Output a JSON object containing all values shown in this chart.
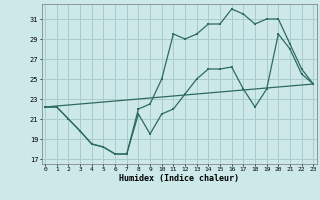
{
  "xlabel": "Humidex (Indice chaleur)",
  "bg_color": "#cce8e8",
  "grid_color": "#aacccc",
  "line_color": "#2d6b5e",
  "line1_x": [
    0,
    1,
    2,
    3,
    4,
    5,
    6,
    7,
    8,
    9,
    10,
    11,
    12,
    13,
    14,
    15,
    16,
    17,
    18,
    19,
    20,
    21,
    22,
    23
  ],
  "line1_y": [
    22.2,
    22.2,
    21.0,
    19.8,
    18.5,
    18.2,
    17.5,
    17.5,
    21.5,
    19.5,
    21.5,
    22.0,
    23.5,
    25.0,
    26.0,
    26.0,
    26.2,
    24.0,
    22.2,
    24.0,
    29.5,
    28.0,
    25.5,
    24.5
  ],
  "line2_x": [
    0,
    1,
    2,
    3,
    4,
    5,
    6,
    7,
    8,
    9,
    10,
    11,
    12,
    13,
    14,
    15,
    16,
    17,
    18,
    19,
    20,
    21,
    22,
    23
  ],
  "line2_y": [
    22.2,
    22.2,
    21.0,
    19.8,
    18.5,
    18.2,
    17.5,
    17.5,
    22.0,
    22.5,
    25.0,
    29.5,
    29.0,
    29.5,
    30.5,
    30.5,
    32.0,
    31.5,
    30.5,
    31.0,
    31.0,
    28.5,
    26.0,
    24.5
  ],
  "line3_x": [
    0,
    23
  ],
  "line3_y": [
    22.2,
    24.5
  ],
  "yticks": [
    17,
    19,
    21,
    23,
    25,
    27,
    29,
    31
  ],
  "xticks": [
    0,
    1,
    2,
    3,
    4,
    5,
    6,
    7,
    8,
    9,
    10,
    11,
    12,
    13,
    14,
    15,
    16,
    17,
    18,
    19,
    20,
    21,
    22,
    23
  ],
  "ylim": [
    16.5,
    32.5
  ],
  "xlim": [
    -0.3,
    23.3
  ]
}
